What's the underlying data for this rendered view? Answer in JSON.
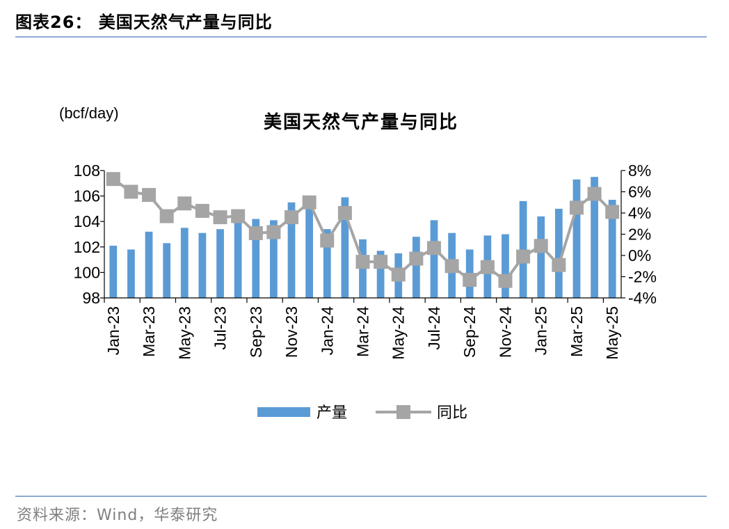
{
  "figure_title": "图表26：  美国天然气产量与同比",
  "source": "资料来源：Wind，华泰研究",
  "colors": {
    "bar": "#5b9bd5",
    "line": "#a5a5a5",
    "rule": "#8eaad0"
  },
  "chart_data": {
    "type": "bar",
    "title": "美国天然气产量与同比",
    "unit_label": "(bcf/day)",
    "categories": [
      "Jan-23",
      "Feb-23",
      "Mar-23",
      "Apr-23",
      "May-23",
      "Jun-23",
      "Jul-23",
      "Aug-23",
      "Sep-23",
      "Oct-23",
      "Nov-23",
      "Dec-23",
      "Jan-24",
      "Feb-24",
      "Mar-24",
      "Apr-24",
      "May-24",
      "Jun-24",
      "Jul-24",
      "Aug-24",
      "Sep-24",
      "Oct-24",
      "Nov-24",
      "Dec-24",
      "Jan-25",
      "Feb-25",
      "Mar-25",
      "Apr-25",
      "May-25"
    ],
    "x_tick_labels": [
      "Jan-23",
      "Mar-23",
      "May-23",
      "Jul-23",
      "Sep-23",
      "Nov-23",
      "Jan-24",
      "Mar-24",
      "May-24",
      "Jul-24",
      "Sep-24",
      "Nov-24",
      "Jan-25",
      "Mar-25",
      "May-25"
    ],
    "series": [
      {
        "name": "产量",
        "type": "bar",
        "axis": "left",
        "values": [
          102.1,
          101.8,
          103.2,
          102.3,
          103.5,
          103.1,
          103.4,
          104.0,
          104.2,
          104.1,
          105.5,
          105.1,
          103.4,
          105.9,
          102.6,
          101.7,
          101.5,
          102.8,
          104.1,
          103.1,
          101.8,
          102.9,
          103.0,
          105.6,
          104.4,
          105.0,
          107.3,
          107.5,
          105.7
        ]
      },
      {
        "name": "同比",
        "type": "line",
        "axis": "right",
        "values": [
          7.2,
          6.0,
          5.7,
          3.7,
          4.9,
          4.2,
          3.6,
          3.7,
          2.1,
          2.2,
          3.6,
          5.0,
          1.4,
          4.0,
          -0.6,
          -0.6,
          -1.8,
          -0.3,
          0.7,
          -1.0,
          -2.3,
          -1.1,
          -2.4,
          -0.1,
          0.9,
          -0.9,
          4.5,
          5.8,
          4.1
        ]
      }
    ],
    "y_left": {
      "min": 98,
      "max": 108,
      "step": 2,
      "ticks": [
        "98",
        "100",
        "102",
        "104",
        "106",
        "108"
      ]
    },
    "y_right": {
      "min": -4,
      "max": 8,
      "step": 2,
      "ticks": [
        "-4%",
        "-2%",
        "0%",
        "2%",
        "4%",
        "6%",
        "8%"
      ]
    },
    "legend": {
      "position": "bottom-center",
      "items": [
        "产量",
        "同比"
      ]
    },
    "grid": false
  }
}
